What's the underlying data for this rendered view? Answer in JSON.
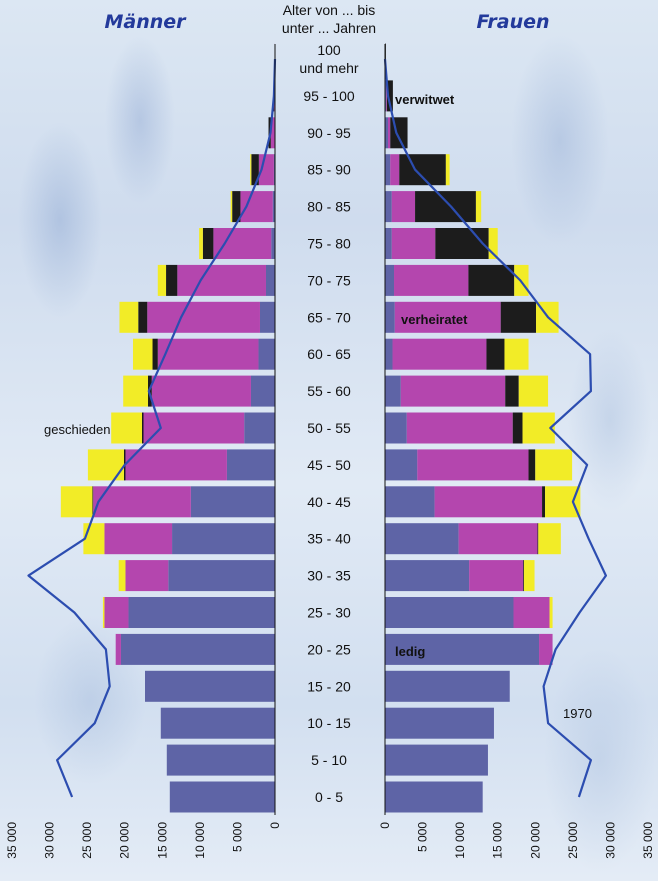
{
  "chart_data": {
    "type": "bar",
    "title_left": "Männer",
    "title_right": "Frauen",
    "age_header": [
      "Alter von ... bis",
      "unter ... Jahren"
    ],
    "categories": [
      "0 - 5",
      "5 - 10",
      "10 - 15",
      "15 - 20",
      "20 - 25",
      "25 - 30",
      "30 - 35",
      "35 - 40",
      "40 - 45",
      "45 - 50",
      "50 - 55",
      "55 - 60",
      "60 - 65",
      "65 - 70",
      "70 - 75",
      "75 - 80",
      "80 - 85",
      "85 - 90",
      "90 - 95",
      "95 - 100",
      "100|und mehr"
    ],
    "series_names": [
      "ledig",
      "verheiratet",
      "verwitwet",
      "geschieden"
    ],
    "colors": {
      "ledig": "#5e64a6",
      "verheiratet": "#b446ae",
      "verwitwet": "#1c1c1c",
      "geschieden": "#f2ec27",
      "line": "#2c4db0",
      "title": "#233a9b"
    },
    "annotations": {
      "verwitwet": "verwitwet",
      "verheiratet": "verheiratet",
      "ledig": "ledig",
      "geschieden": "geschieden",
      "year": "1970"
    },
    "xlim": [
      0,
      35000
    ],
    "ticks": [
      "35 000",
      "30 000",
      "25 000",
      "20 000",
      "15 000",
      "10 000",
      "5 000",
      "0"
    ],
    "tick_values": [
      35000,
      30000,
      25000,
      20000,
      15000,
      10000,
      5000,
      0
    ],
    "men": {
      "ledig": [
        14000,
        14400,
        15200,
        17300,
        20500,
        19500,
        14200,
        13700,
        11200,
        6400,
        4100,
        3200,
        2200,
        2000,
        1200,
        500,
        300,
        150,
        60,
        20,
        0
      ],
      "verheiratet": [
        0,
        0,
        0,
        0,
        700,
        3200,
        5700,
        9000,
        13000,
        13500,
        13400,
        13200,
        13400,
        15000,
        11800,
        7700,
        4300,
        2000,
        500,
        100,
        20
      ],
      "verwitwet": [
        0,
        0,
        0,
        0,
        0,
        0,
        0,
        0,
        100,
        200,
        200,
        500,
        700,
        1200,
        1500,
        1400,
        1100,
        1000,
        300,
        80,
        0
      ],
      "geschieden": [
        0,
        0,
        0,
        0,
        0,
        200,
        900,
        2800,
        4200,
        4800,
        4100,
        3300,
        2600,
        2500,
        1100,
        500,
        200,
        150,
        0,
        0,
        0
      ],
      "line_1970": [
        27000,
        29000,
        24000,
        22000,
        22500,
        26700,
        32800,
        25300,
        23500,
        20000,
        15200,
        16800,
        14600,
        12500,
        9900,
        6700,
        3800,
        1800,
        600,
        150,
        0
      ]
    },
    "women": {
      "ledig": [
        13000,
        13700,
        14500,
        16600,
        20500,
        17100,
        11200,
        9800,
        6600,
        4300,
        2900,
        2100,
        1000,
        1300,
        1200,
        900,
        900,
        700,
        400,
        150,
        20
      ],
      "verheiratet": [
        0,
        0,
        0,
        0,
        1800,
        4800,
        7200,
        10500,
        14300,
        14800,
        14100,
        13900,
        12500,
        14100,
        9900,
        5800,
        3100,
        1200,
        300,
        100,
        0
      ],
      "verwitwet": [
        0,
        0,
        0,
        0,
        0,
        0,
        100,
        100,
        400,
        900,
        1300,
        1800,
        2400,
        4700,
        6100,
        7100,
        8100,
        6200,
        2300,
        800,
        100
      ],
      "geschieden": [
        0,
        0,
        0,
        0,
        0,
        400,
        1400,
        3000,
        4700,
        4900,
        4300,
        3900,
        3200,
        3000,
        1900,
        1200,
        700,
        500,
        0,
        0,
        0
      ],
      "line_1970": [
        25800,
        27400,
        21700,
        21100,
        22700,
        25900,
        29400,
        27100,
        25000,
        26900,
        22000,
        27400,
        27300,
        21700,
        18000,
        13000,
        8800,
        4000,
        1500,
        400,
        0
      ]
    }
  }
}
